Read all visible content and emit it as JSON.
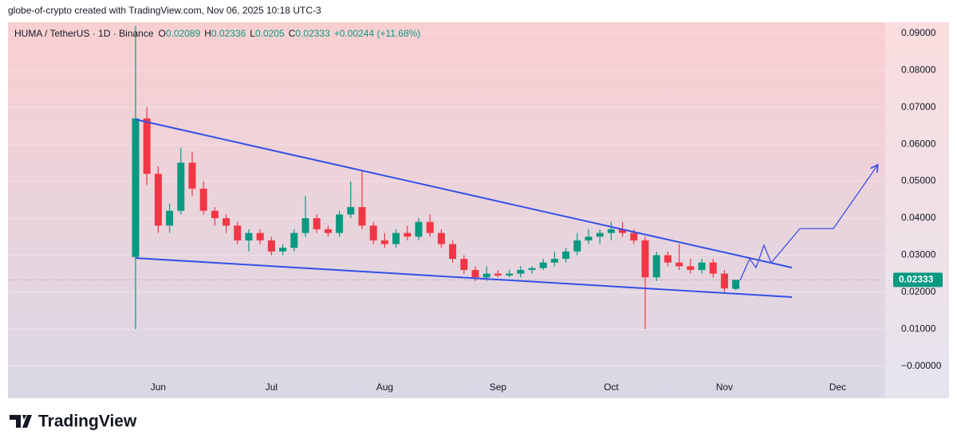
{
  "watermark": "globe-of-crypto created with TradingView.com, Nov 06, 2025 10:18 UTC-3",
  "logo": "TradingView",
  "chart_data": {
    "type": "candlestick",
    "symbol": "HUMA / TetherUS · 1D · Binance",
    "ohlc_letters": [
      "O",
      "H",
      "L",
      "C"
    ],
    "change": "+0.00244 (+11.68%)",
    "up_color": "#089981",
    "down_color": "#f23645",
    "ylim": [
      -0.0087,
      0.093
    ],
    "yticks": [
      {
        "value": 0,
        "label": "−0.00000"
      },
      {
        "value": 0.01,
        "label": "0.01000"
      },
      {
        "value": 0.02,
        "label": "0.02000"
      },
      {
        "value": 0.03,
        "label": "0.03000"
      },
      {
        "value": 0.04,
        "label": "0.04000"
      },
      {
        "value": 0.05,
        "label": "0.05000"
      },
      {
        "value": 0.06,
        "label": "0.06000"
      },
      {
        "value": 0.07,
        "label": "0.07000"
      },
      {
        "value": 0.08,
        "label": "0.08000"
      },
      {
        "value": 0.09,
        "label": "0.09000"
      }
    ],
    "grid": true,
    "categories": [
      null,
      null,
      "Jun",
      null,
      null,
      null,
      null,
      null,
      null,
      null,
      null,
      null,
      "Jul",
      null,
      null,
      null,
      null,
      null,
      null,
      null,
      null,
      null,
      "Aug",
      null,
      null,
      null,
      null,
      null,
      null,
      null,
      null,
      null,
      "Sep",
      null,
      null,
      null,
      null,
      null,
      null,
      null,
      null,
      null,
      "Oct",
      null,
      null,
      null,
      null,
      null,
      null,
      null,
      null,
      null,
      "Nov",
      null,
      null,
      null,
      null,
      null,
      null,
      null,
      null,
      null,
      "Dec"
    ],
    "open": [
      0.0295,
      0.067,
      0.052,
      0.038,
      0.042,
      0.055,
      0.048,
      0.042,
      0.04,
      0.038,
      0.034,
      0.036,
      0.034,
      0.031,
      0.032,
      0.036,
      0.04,
      0.037,
      0.036,
      0.041,
      0.043,
      0.038,
      0.034,
      0.033,
      0.036,
      0.035,
      0.039,
      0.036,
      0.033,
      0.029,
      0.026,
      0.024,
      0.025,
      0.0245,
      0.025,
      0.026,
      0.0265,
      0.028,
      0.029,
      0.031,
      0.034,
      0.035,
      0.036,
      0.037,
      0.036,
      0.034,
      0.024,
      0.03,
      0.028,
      0.027,
      0.026,
      0.028,
      0.025,
      0.02089,
      null,
      null,
      null,
      null,
      null,
      null,
      null,
      null,
      null
    ],
    "high": [
      0.092,
      0.07,
      0.054,
      0.044,
      0.059,
      0.058,
      0.05,
      0.043,
      0.041,
      0.039,
      0.037,
      0.037,
      0.035,
      0.033,
      0.037,
      0.046,
      0.041,
      0.038,
      0.042,
      0.05,
      0.053,
      0.039,
      0.036,
      0.037,
      0.038,
      0.04,
      0.041,
      0.037,
      0.034,
      0.03,
      0.027,
      0.027,
      0.026,
      0.026,
      0.027,
      0.027,
      0.029,
      0.031,
      0.032,
      0.036,
      0.037,
      0.037,
      0.039,
      0.039,
      0.037,
      0.035,
      0.031,
      0.031,
      0.033,
      0.029,
      0.029,
      0.029,
      0.026,
      0.02336,
      null,
      null,
      null,
      null,
      null,
      null,
      null,
      null,
      null
    ],
    "low": [
      0.01,
      0.049,
      0.036,
      0.036,
      0.041,
      0.046,
      0.041,
      0.038,
      0.036,
      0.033,
      0.031,
      0.033,
      0.03,
      0.03,
      0.031,
      0.035,
      0.036,
      0.035,
      0.035,
      0.04,
      0.037,
      0.033,
      0.032,
      0.032,
      0.034,
      0.034,
      0.035,
      0.032,
      0.028,
      0.025,
      0.023,
      0.023,
      0.024,
      0.024,
      0.024,
      0.025,
      0.026,
      0.027,
      0.028,
      0.03,
      0.033,
      0.033,
      0.034,
      0.035,
      0.033,
      0.01,
      0.023,
      0.027,
      0.026,
      0.025,
      0.025,
      0.024,
      0.02,
      0.0205,
      null,
      null,
      null,
      null,
      null,
      null,
      null,
      null,
      null
    ],
    "close": [
      0.067,
      0.052,
      0.038,
      0.042,
      0.055,
      0.048,
      0.042,
      0.04,
      0.038,
      0.034,
      0.036,
      0.034,
      0.031,
      0.032,
      0.036,
      0.04,
      0.037,
      0.036,
      0.041,
      0.043,
      0.038,
      0.034,
      0.033,
      0.036,
      0.035,
      0.039,
      0.036,
      0.033,
      0.029,
      0.026,
      0.024,
      0.025,
      0.0245,
      0.025,
      0.026,
      0.0265,
      0.028,
      0.029,
      0.031,
      0.034,
      0.035,
      0.036,
      0.037,
      0.036,
      0.034,
      0.024,
      0.03,
      0.028,
      0.027,
      0.026,
      0.028,
      0.025,
      0.021,
      0.02333,
      null,
      null,
      null,
      null,
      null,
      null,
      null,
      null,
      null
    ]
  }
}
